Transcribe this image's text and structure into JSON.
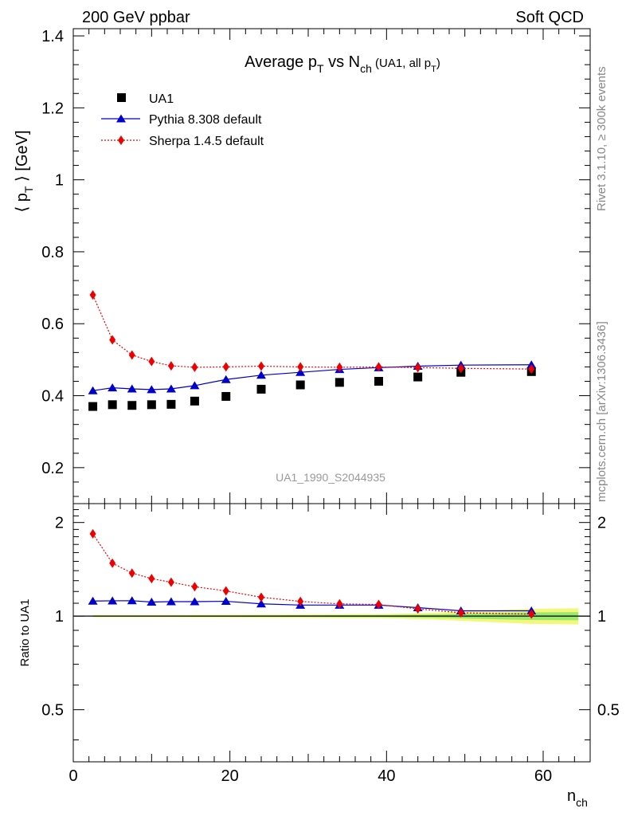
{
  "header": {
    "left": "200 GeV ppbar",
    "right": "Soft QCD"
  },
  "side_labels": {
    "top": "Rivet 3.1.10, ≥ 300k events",
    "bottom": "mcplots.cern.ch [arXiv:1306.3436]"
  },
  "chart_data": [
    {
      "type": "scatter",
      "title": "Average p_T vs N_ch (UA1, all p_T)",
      "title_parts": {
        "main": "Average p",
        "main_sub": "T",
        "mid": " vs N",
        "mid_sub": "ch",
        "small": " (UA1, all p",
        "small_sub": "T",
        "small_end": ")"
      },
      "ylabel": "⟨ p_T ⟩ [GeV]",
      "ylabel_parts": {
        "open": "⟨ p",
        "sub": "T",
        "close": " ⟩ [GeV]"
      },
      "xlim": [
        0,
        66
      ],
      "ylim": [
        0.1,
        1.42
      ],
      "yticks": [
        0.2,
        0.4,
        0.6,
        0.8,
        1,
        1.2,
        1.4
      ],
      "ytick_labels": [
        "0.2",
        "0.4",
        "0.6",
        "0.8",
        "1",
        "1.2",
        "1.4"
      ],
      "watermark": "UA1_1990_S2044935",
      "legend_position": "top-left",
      "series": [
        {
          "name": "UA1",
          "marker": "square",
          "color": "#000000",
          "x": [
            2.5,
            5,
            7.5,
            10,
            12.5,
            15.5,
            19.5,
            24,
            29,
            34,
            39,
            44,
            49.5,
            58.5
          ],
          "y": [
            0.37,
            0.375,
            0.373,
            0.375,
            0.376,
            0.385,
            0.398,
            0.418,
            0.43,
            0.437,
            0.44,
            0.452,
            0.465,
            0.467
          ]
        },
        {
          "name": "Pythia 8.308 default",
          "marker": "triangle",
          "color": "#0000cc",
          "line": "solid",
          "x": [
            2.5,
            5,
            7.5,
            10,
            12.5,
            15.5,
            19.5,
            24,
            29,
            34,
            39,
            44,
            49.5,
            58.5
          ],
          "y": [
            0.414,
            0.422,
            0.419,
            0.417,
            0.419,
            0.428,
            0.445,
            0.457,
            0.465,
            0.473,
            0.478,
            0.482,
            0.485,
            0.486
          ]
        },
        {
          "name": "Sherpa 1.4.5 default",
          "marker": "diamond",
          "color": "#ee0000",
          "line": "dotted",
          "x": [
            2.5,
            5,
            7.5,
            10,
            12.5,
            15.5,
            19.5,
            24,
            29,
            34,
            39,
            44,
            49.5,
            58.5
          ],
          "y": [
            0.68,
            0.555,
            0.513,
            0.495,
            0.483,
            0.479,
            0.48,
            0.482,
            0.48,
            0.479,
            0.48,
            0.478,
            0.476,
            0.474
          ]
        }
      ]
    },
    {
      "type": "scatter",
      "ylabel": "Ratio to UA1",
      "xlabel": "n_ch",
      "xlabel_parts": {
        "main": "n",
        "sub": "ch"
      },
      "xlim": [
        0,
        66
      ],
      "xticks": [
        0,
        20,
        40,
        60
      ],
      "xtick_labels": [
        "0",
        "20",
        "40",
        "60"
      ],
      "ylim": [
        0.34,
        2.3
      ],
      "yticks": [
        0.5,
        1,
        2
      ],
      "ytick_labels": [
        "0.5",
        "1",
        "2"
      ],
      "reference_line": 1,
      "band": {
        "color_outer": "#f3f77a",
        "color_inner": "#9be870",
        "x": [
          2.5,
          10,
          20,
          30,
          40,
          46,
          52,
          58,
          64.5
        ],
        "outer": [
          0.008,
          0.008,
          0.01,
          0.012,
          0.015,
          0.025,
          0.04,
          0.055,
          0.06
        ],
        "inner": [
          0.004,
          0.004,
          0.005,
          0.006,
          0.008,
          0.012,
          0.02,
          0.028,
          0.03
        ]
      },
      "series": [
        {
          "name": "Pythia 8.308 default",
          "marker": "triangle",
          "color": "#0000cc",
          "line": "solid",
          "x": [
            2.5,
            5,
            7.5,
            10,
            12.5,
            15.5,
            19.5,
            24,
            29,
            34,
            39,
            44,
            49.5,
            58.5
          ],
          "y": [
            1.118,
            1.12,
            1.121,
            1.11,
            1.113,
            1.113,
            1.116,
            1.095,
            1.085,
            1.085,
            1.085,
            1.065,
            1.04,
            1.04
          ]
        },
        {
          "name": "Sherpa 1.4.5 default",
          "marker": "diamond",
          "color": "#ee0000",
          "line": "dotted",
          "x": [
            2.5,
            5,
            7.5,
            10,
            12.5,
            15.5,
            19.5,
            24,
            29,
            34,
            39,
            44,
            49.5,
            58.5
          ],
          "y": [
            1.84,
            1.48,
            1.375,
            1.32,
            1.285,
            1.243,
            1.205,
            1.15,
            1.115,
            1.095,
            1.09,
            1.055,
            1.025,
            1.015
          ]
        }
      ]
    }
  ]
}
